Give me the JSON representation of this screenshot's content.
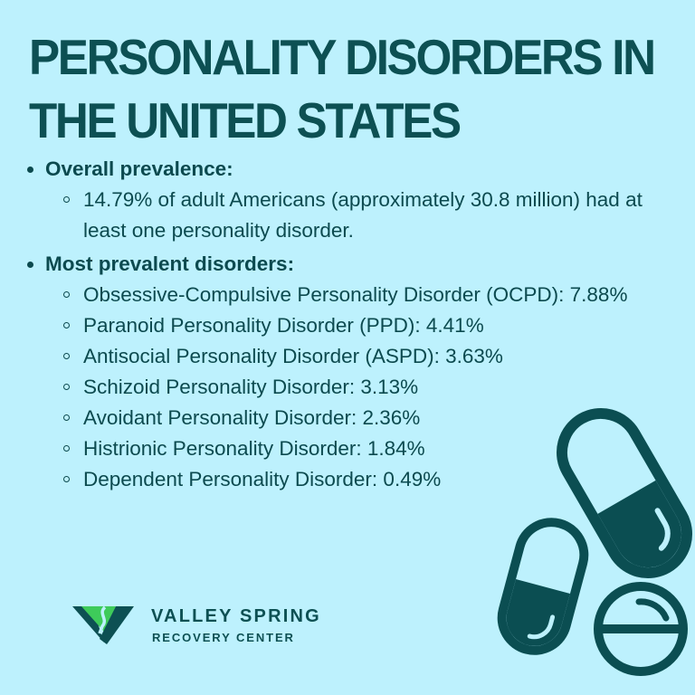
{
  "title": {
    "line1": "PERSONALITY DISORDERS IN",
    "line2": "THE UNITED STATES"
  },
  "sections": [
    {
      "heading": "Overall prevalence:",
      "items": [
        "14.79% of adult Americans (approximately 30.8 million) had at least one personality disorder."
      ]
    },
    {
      "heading": "Most prevalent disorders:",
      "items": [
        "Obsessive-Compulsive Personality Disorder (OCPD): 7.88%",
        "Paranoid Personality Disorder (PPD): 4.41%",
        "Antisocial Personality Disorder (ASPD): 3.63%",
        "Schizoid Personality Disorder: 3.13%",
        "Avoidant Personality Disorder: 2.36%",
        "Histrionic Personality Disorder: 1.84%",
        "Dependent Personality Disorder: 0.49%"
      ]
    }
  ],
  "brand": {
    "name": "VALLEY SPRING",
    "subtitle": "RECOVERY CENTER"
  },
  "icons": {
    "logo": "valley-spring-logo",
    "illustration": "pills-icon"
  },
  "colors": {
    "background": "#bdf1fd",
    "primary": "#0b4e52",
    "accent": "#3ecb5a"
  }
}
